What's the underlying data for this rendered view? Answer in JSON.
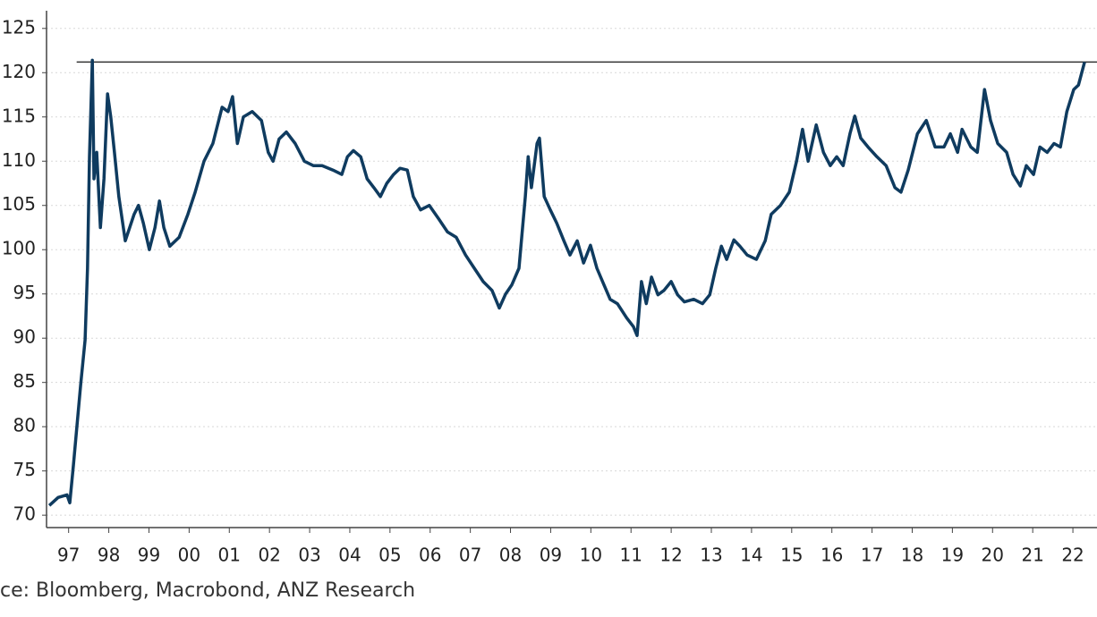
{
  "chart_data": {
    "type": "line",
    "source": "ce: Bloomberg, Macrobond, ANZ Research",
    "xlim": [
      1996.95,
      2023.1
    ],
    "ylim": [
      68.6,
      127
    ],
    "yticks": [
      70,
      75,
      80,
      85,
      90,
      95,
      100,
      105,
      110,
      115,
      120,
      125
    ],
    "xticks": [
      {
        "value": 1997.5,
        "label": "97"
      },
      {
        "value": 1998.5,
        "label": "98"
      },
      {
        "value": 1999.5,
        "label": "99"
      },
      {
        "value": 2000.5,
        "label": "00"
      },
      {
        "value": 2001.5,
        "label": "01"
      },
      {
        "value": 2002.5,
        "label": "02"
      },
      {
        "value": 2003.5,
        "label": "03"
      },
      {
        "value": 2004.5,
        "label": "04"
      },
      {
        "value": 2005.5,
        "label": "05"
      },
      {
        "value": 2006.5,
        "label": "06"
      },
      {
        "value": 2007.5,
        "label": "07"
      },
      {
        "value": 2008.5,
        "label": "08"
      },
      {
        "value": 2009.5,
        "label": "09"
      },
      {
        "value": 2010.5,
        "label": "10"
      },
      {
        "value": 2011.5,
        "label": "11"
      },
      {
        "value": 2012.5,
        "label": "12"
      },
      {
        "value": 2013.5,
        "label": "13"
      },
      {
        "value": 2014.5,
        "label": "14"
      },
      {
        "value": 2015.5,
        "label": "15"
      },
      {
        "value": 2016.5,
        "label": "16"
      },
      {
        "value": 2017.5,
        "label": "17"
      },
      {
        "value": 2018.5,
        "label": "18"
      },
      {
        "value": 2019.5,
        "label": "19"
      },
      {
        "value": 2020.5,
        "label": "20"
      },
      {
        "value": 2021.5,
        "label": "21"
      },
      {
        "value": 2022.5,
        "label": "22"
      }
    ],
    "grid": true,
    "color": "#0f3b5f",
    "reference_line": {
      "y": 121.2,
      "x_start": 1997.7,
      "color": "#333333"
    },
    "x": [
      1997.02,
      1997.24,
      1997.46,
      1997.53,
      1997.62,
      1997.8,
      1997.91,
      1997.97,
      1998.02,
      1998.09,
      1998.13,
      1998.2,
      1998.29,
      1998.38,
      1998.47,
      1998.55,
      1998.64,
      1998.75,
      1998.91,
      1999.13,
      1999.24,
      1999.36,
      1999.51,
      1999.65,
      1999.76,
      1999.87,
      2000.02,
      2000.25,
      2000.47,
      2000.65,
      2000.87,
      2001.09,
      2001.32,
      2001.47,
      2001.58,
      2001.7,
      2001.85,
      2002.07,
      2002.3,
      2002.47,
      2002.59,
      2002.74,
      2002.92,
      2003.14,
      2003.37,
      2003.59,
      2003.81,
      2004.08,
      2004.3,
      2004.44,
      2004.59,
      2004.77,
      2004.93,
      2005.1,
      2005.26,
      2005.42,
      2005.59,
      2005.75,
      2005.93,
      2006.08,
      2006.26,
      2006.48,
      2006.71,
      2006.93,
      2007.15,
      2007.38,
      2007.6,
      2007.82,
      2008.04,
      2008.22,
      2008.38,
      2008.53,
      2008.71,
      2008.87,
      2008.94,
      2009.02,
      2009.16,
      2009.22,
      2009.34,
      2009.49,
      2009.65,
      2009.83,
      2009.98,
      2010.16,
      2010.32,
      2010.49,
      2010.65,
      2010.83,
      2010.98,
      2011.16,
      2011.39,
      2011.56,
      2011.65,
      2011.76,
      2011.88,
      2012.01,
      2012.17,
      2012.32,
      2012.5,
      2012.66,
      2012.83,
      2013.06,
      2013.28,
      2013.46,
      2013.61,
      2013.75,
      2013.88,
      2014.06,
      2014.21,
      2014.39,
      2014.62,
      2014.84,
      2014.99,
      2015.22,
      2015.44,
      2015.62,
      2015.77,
      2015.91,
      2016.11,
      2016.29,
      2016.46,
      2016.62,
      2016.78,
      2016.95,
      2017.07,
      2017.22,
      2017.4,
      2017.62,
      2017.85,
      2018.07,
      2018.22,
      2018.4,
      2018.63,
      2018.85,
      2019.07,
      2019.29,
      2019.45,
      2019.63,
      2019.74,
      2019.96,
      2020.12,
      2020.3,
      2020.45,
      2020.63,
      2020.85,
      2021.01,
      2021.19,
      2021.34,
      2021.52,
      2021.68,
      2021.86,
      2022.03,
      2022.19,
      2022.35,
      2022.52,
      2022.64,
      2022.79
    ],
    "values": [
      71.1,
      72,
      72.3,
      71.4,
      75.7,
      84.8,
      89.8,
      97.9,
      110.5,
      121.4,
      108,
      111,
      102.5,
      108,
      117.6,
      115,
      111,
      106,
      101,
      104,
      105,
      103,
      100,
      102.5,
      105.5,
      102.5,
      100.4,
      101.4,
      104,
      106.5,
      110,
      112,
      116.1,
      115.6,
      117.3,
      112,
      115,
      115.6,
      114.6,
      111,
      110,
      112.5,
      113.3,
      112,
      110,
      109.5,
      109.5,
      109,
      108.5,
      110.5,
      111.2,
      110.5,
      108,
      107,
      106,
      107.5,
      108.5,
      109.2,
      109,
      106,
      104.5,
      105,
      103.5,
      102,
      101.4,
      99.4,
      97.9,
      96.4,
      95.4,
      93.4,
      95,
      96,
      97.9,
      106,
      110.5,
      107,
      112,
      112.6,
      106,
      104.5,
      103,
      101,
      99.4,
      101,
      98.5,
      100.5,
      97.9,
      96,
      94.4,
      93.9,
      92.3,
      91.3,
      90.3,
      96.4,
      93.9,
      96.9,
      94.9,
      95.4,
      96.4,
      94.9,
      94.1,
      94.4,
      93.9,
      94.9,
      97.9,
      100.4,
      98.9,
      101.1,
      100.4,
      99.4,
      98.9,
      101,
      104,
      105,
      106.5,
      110,
      113.6,
      110,
      114.1,
      111,
      109.5,
      110.5,
      109.5,
      113.1,
      115.1,
      112.6,
      111.6,
      110.5,
      109.5,
      107,
      106.5,
      109,
      113.1,
      114.6,
      111.6,
      111.6,
      113.1,
      111,
      113.6,
      111.6,
      111,
      118.1,
      114.6,
      112,
      111,
      108.5,
      107.2,
      109.5,
      108.5,
      111.6,
      111,
      112,
      111.6,
      115.6,
      118.1,
      118.6,
      121.2
    ]
  }
}
